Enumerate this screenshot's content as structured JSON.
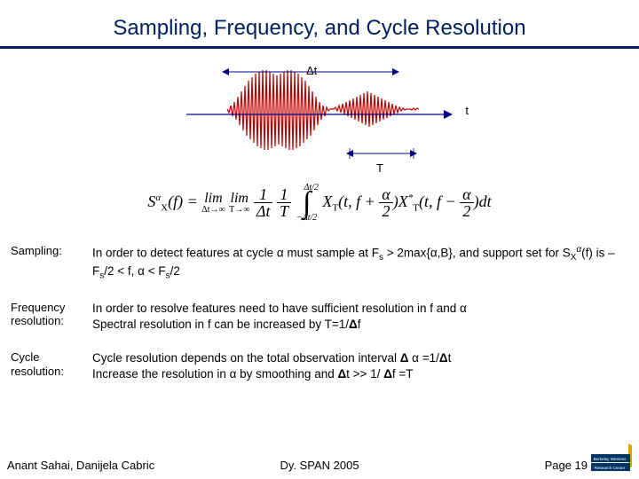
{
  "title": {
    "text": "Sampling, Frequency, and Cycle Resolution",
    "color": "#002060",
    "fontsize": 24,
    "underline_color": "#002060"
  },
  "diagram": {
    "dt_label": "Δt",
    "t_label": "t",
    "T_label": "T",
    "signal_color": "#c00000",
    "axis_color": "#000080",
    "signal_points": [
      [
        46,
        48
      ],
      [
        48,
        52
      ],
      [
        50,
        44
      ],
      [
        52,
        56
      ],
      [
        54,
        40
      ],
      [
        56,
        60
      ],
      [
        58,
        34
      ],
      [
        60,
        66
      ],
      [
        62,
        28
      ],
      [
        64,
        72
      ],
      [
        66,
        22
      ],
      [
        68,
        78
      ],
      [
        70,
        16
      ],
      [
        72,
        82
      ],
      [
        74,
        12
      ],
      [
        76,
        86
      ],
      [
        78,
        8
      ],
      [
        80,
        90
      ],
      [
        82,
        6
      ],
      [
        84,
        92
      ],
      [
        86,
        4
      ],
      [
        88,
        94
      ],
      [
        90,
        4
      ],
      [
        92,
        94
      ],
      [
        94,
        6
      ],
      [
        96,
        92
      ],
      [
        98,
        8
      ],
      [
        100,
        90
      ],
      [
        102,
        10
      ],
      [
        104,
        88
      ],
      [
        106,
        8
      ],
      [
        108,
        90
      ],
      [
        110,
        6
      ],
      [
        112,
        92
      ],
      [
        114,
        4
      ],
      [
        116,
        94
      ],
      [
        118,
        4
      ],
      [
        120,
        94
      ],
      [
        122,
        6
      ],
      [
        124,
        92
      ],
      [
        126,
        8
      ],
      [
        128,
        90
      ],
      [
        130,
        12
      ],
      [
        132,
        86
      ],
      [
        134,
        16
      ],
      [
        136,
        82
      ],
      [
        138,
        22
      ],
      [
        140,
        78
      ],
      [
        142,
        28
      ],
      [
        144,
        72
      ],
      [
        146,
        34
      ],
      [
        148,
        66
      ],
      [
        150,
        40
      ],
      [
        152,
        60
      ],
      [
        154,
        44
      ],
      [
        156,
        56
      ],
      [
        158,
        46
      ],
      [
        160,
        50
      ],
      [
        162,
        48
      ],
      [
        164,
        48
      ],
      [
        166,
        48
      ],
      [
        168,
        46
      ],
      [
        170,
        50
      ],
      [
        172,
        44
      ],
      [
        174,
        52
      ],
      [
        176,
        42
      ],
      [
        178,
        54
      ],
      [
        180,
        40
      ],
      [
        182,
        56
      ],
      [
        184,
        38
      ],
      [
        186,
        58
      ],
      [
        188,
        36
      ],
      [
        190,
        60
      ],
      [
        192,
        34
      ],
      [
        194,
        62
      ],
      [
        196,
        32
      ],
      [
        198,
        64
      ],
      [
        200,
        30
      ],
      [
        202,
        66
      ],
      [
        204,
        28
      ],
      [
        206,
        68
      ],
      [
        208,
        30
      ],
      [
        210,
        66
      ],
      [
        212,
        32
      ],
      [
        214,
        64
      ],
      [
        216,
        34
      ],
      [
        218,
        62
      ],
      [
        220,
        36
      ],
      [
        222,
        60
      ],
      [
        224,
        38
      ],
      [
        226,
        58
      ],
      [
        228,
        40
      ],
      [
        230,
        56
      ],
      [
        232,
        42
      ],
      [
        234,
        54
      ],
      [
        236,
        44
      ],
      [
        238,
        52
      ],
      [
        240,
        46
      ],
      [
        242,
        50
      ],
      [
        244,
        47
      ],
      [
        246,
        49
      ],
      [
        248,
        48
      ],
      [
        250,
        48
      ],
      [
        252,
        48
      ],
      [
        254,
        49
      ],
      [
        256,
        47
      ],
      [
        258,
        49
      ],
      [
        260,
        47
      ],
      [
        262,
        48
      ]
    ]
  },
  "equation": {
    "lhs_S": "S",
    "lhs_X": "X",
    "lhs_alpha": "α",
    "lhs_f": "(f)",
    "lim": "lim",
    "lim1_sub": "Δt→∞",
    "lim2_sub": "T→∞",
    "frac1_num": "1",
    "frac1_den": "Δt",
    "frac2_num": "1",
    "frac2_den": "T",
    "int_top": "Δt/2",
    "int_bot": "−Δt/2",
    "Xpart": "X",
    "Tsub": "T",
    "arg1a": "(t, f +",
    "alpha": "α",
    "two": "2",
    "argclose": ")",
    "star": "*",
    "arg2a": "(t, f −",
    "dt": "dt"
  },
  "rows": [
    {
      "label": "Sampling:",
      "html": "In order to detect features at cycle α  must sample at F<span class='sub2'>s</span> > 2max{α,B}, and support set for S<span class='sub2'>X</span><span class='sup' style='font-size:10px'>α</span>(f)  is  –F<span class='sub2'>s</span>/2 <  f, α < F<span class='sub2'>s</span>/2"
    },
    {
      "label": "Frequency resolution:",
      "html": "In order to resolve features need to have sufficient resolution in f and α<br>Spectral resolution in f can be increased by T=1/<b>Δ</b>f"
    },
    {
      "label": "Cycle resolution:",
      "html": "Cycle resolution depends on the total observation interval <b>Δ</b> α =1/<b>Δ</b>t<br>Increase the resolution in α by smoothing and <b>Δ</b>t >> 1/ <b>Δ</b>f =T"
    }
  ],
  "footer": {
    "left": "Anant Sahai, Danijela Cabric",
    "center": "Dy. SPAN 2005",
    "right": "Page 19"
  },
  "logo": {
    "top_text": "Berkeley Wireless",
    "bottom_text": "Research Center",
    "accent_color": "#e0a000",
    "bar_color": "#003366"
  }
}
